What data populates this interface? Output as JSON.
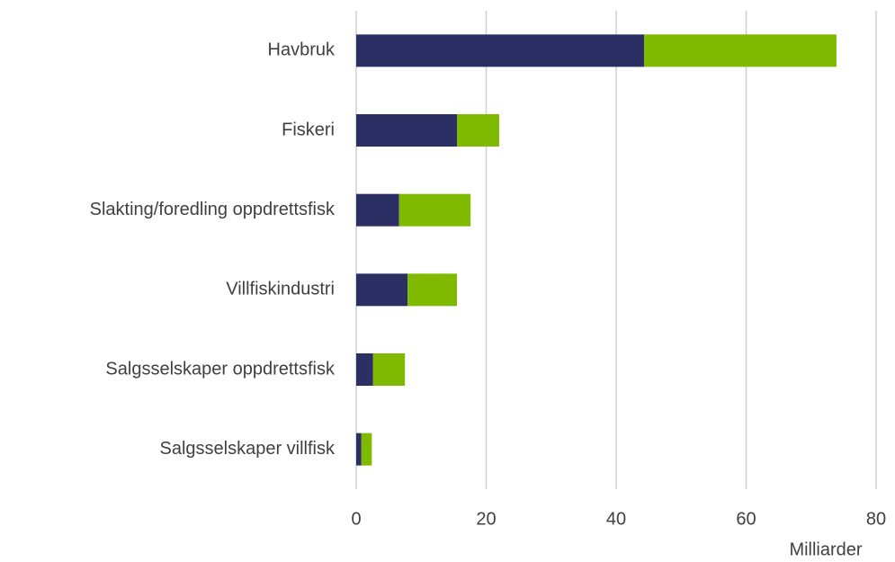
{
  "chart_data": {
    "type": "stacked-barh",
    "categories": [
      "Havbruk",
      "Fiskeri",
      "Slakting/foredling oppdrettsfisk",
      "Villfiskindustri",
      "Salgsselskaper oppdrettsfisk",
      "Salgsselskaper villfisk"
    ],
    "series": [
      {
        "color": "#2b2f63",
        "values": [
          44.3,
          15.5,
          6.6,
          7.9,
          2.6,
          0.8
        ]
      },
      {
        "color": "#7fba00",
        "values": [
          29.6,
          6.5,
          11.0,
          7.6,
          4.9,
          1.6
        ]
      }
    ],
    "xlabel": "Milliarder",
    "xlim": [
      0,
      80
    ],
    "xticks": [
      0,
      20,
      40,
      60,
      80
    ],
    "grid": true
  }
}
